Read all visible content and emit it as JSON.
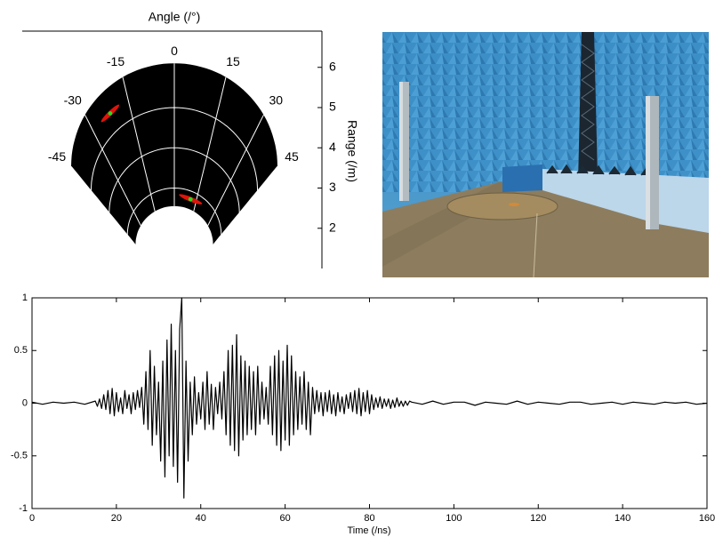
{
  "chart_data": [
    {
      "type": "polar",
      "title": "Angle (/°)",
      "ylabel": "Range (/m)",
      "xlim": [
        -45,
        45
      ],
      "xticks": [
        -45,
        -30,
        -15,
        0,
        15,
        30,
        45
      ],
      "ylim": [
        1,
        6.9
      ],
      "yticks": [
        2,
        3,
        4,
        5,
        6
      ],
      "rlim": [
        2.55,
        6.1
      ],
      "grid": true,
      "background": "#000000",
      "grid_color": "#ffffff",
      "targets": {
        "angle": [
          -22,
          11
        ],
        "range": [
          5.5,
          2.8
        ],
        "color": "#e0140a",
        "center_color": "#22dd22"
      }
    },
    {
      "type": "line",
      "xlabel": "Time (/ns)",
      "color": "#000000",
      "xlim": [
        0,
        160
      ],
      "xticks": [
        0,
        20,
        40,
        60,
        80,
        100,
        120,
        140,
        160
      ],
      "ylim": [
        -1,
        1
      ],
      "yticks": [
        -1,
        -0.5,
        0,
        0.5,
        1
      ],
      "x": [
        0,
        2.5,
        5,
        7.5,
        10,
        12.5,
        15,
        15.5,
        16,
        16.5,
        17,
        17.5,
        18,
        18.5,
        19,
        19.5,
        20,
        20.5,
        21,
        21.5,
        22,
        22.5,
        23,
        23.5,
        24,
        24.5,
        25,
        25.5,
        26,
        26.5,
        27,
        27.5,
        28,
        28.5,
        29,
        29.5,
        30,
        30.5,
        31,
        31.5,
        32,
        32.5,
        33,
        33.5,
        34,
        34.5,
        35,
        35.5,
        36,
        36.5,
        37,
        37.5,
        38,
        38.5,
        39,
        39.5,
        40,
        40.5,
        41,
        41.5,
        42,
        42.5,
        43,
        43.5,
        44,
        44.5,
        45,
        45.5,
        46,
        46.5,
        47,
        47.5,
        48,
        48.5,
        49,
        49.5,
        50,
        50.5,
        51,
        51.5,
        52,
        52.5,
        53,
        53.5,
        54,
        54.5,
        55,
        55.5,
        56,
        56.5,
        57,
        57.5,
        58,
        58.5,
        59,
        59.5,
        60,
        60.5,
        61,
        61.5,
        62,
        62.5,
        63,
        63.5,
        64,
        64.5,
        65,
        65.5,
        66,
        66.5,
        67,
        67.5,
        68,
        68.5,
        69,
        69.5,
        70,
        70.5,
        71,
        71.5,
        72,
        72.5,
        73,
        73.5,
        74,
        74.5,
        75,
        75.5,
        76,
        76.5,
        77,
        77.5,
        78,
        78.5,
        79,
        79.5,
        80,
        80.5,
        81,
        81.5,
        82,
        82.5,
        83,
        83.5,
        84,
        84.5,
        85,
        85.5,
        86,
        86.5,
        87,
        87.5,
        88,
        88.5,
        89,
        89.5,
        90,
        92.5,
        95,
        97.5,
        100,
        102.5,
        105,
        107.5,
        110,
        112.5,
        115,
        117.5,
        120,
        122.5,
        125,
        127.5,
        130,
        132.5,
        135,
        137.5,
        140,
        142.5,
        145,
        147.5,
        150,
        152.5,
        155,
        157.5,
        160
      ],
      "values": [
        0.01,
        -0.01,
        0.01,
        0,
        0.01,
        -0.01,
        0.02,
        -0.03,
        0.04,
        -0.05,
        0.08,
        -0.06,
        0.12,
        -0.1,
        0.14,
        -0.12,
        0.1,
        -0.08,
        0.05,
        -0.1,
        0.12,
        -0.05,
        0.08,
        -0.1,
        0.1,
        -0.06,
        0.12,
        -0.04,
        0.15,
        -0.2,
        0.3,
        -0.25,
        0.5,
        -0.4,
        0.35,
        -0.3,
        0.2,
        -0.55,
        0.4,
        -0.7,
        0.6,
        -0.5,
        0.75,
        -0.6,
        0.5,
        -0.75,
        0.7,
        1.0,
        -0.9,
        0.4,
        -0.55,
        0.2,
        -0.3,
        0.25,
        -0.2,
        0.1,
        -0.15,
        0.2,
        -0.25,
        0.3,
        -0.2,
        0.18,
        -0.25,
        0.15,
        -0.1,
        0.2,
        -0.15,
        0.3,
        -0.3,
        0.5,
        -0.4,
        0.55,
        -0.45,
        0.65,
        -0.5,
        0.45,
        -0.35,
        0.4,
        -0.3,
        0.35,
        -0.25,
        0.3,
        -0.3,
        0.35,
        -0.2,
        0.2,
        -0.15,
        0.15,
        -0.2,
        0.35,
        -0.3,
        0.45,
        -0.4,
        0.5,
        -0.45,
        0.4,
        -0.35,
        0.55,
        -0.4,
        0.45,
        -0.3,
        0.3,
        -0.25,
        0.25,
        -0.2,
        0.3,
        -0.25,
        0.2,
        -0.3,
        0.15,
        -0.1,
        0.12,
        -0.08,
        0.1,
        -0.12,
        0.1,
        -0.08,
        0.12,
        -0.1,
        0.08,
        -0.12,
        0.1,
        -0.08,
        0.06,
        -0.1,
        0.08,
        -0.05,
        0.1,
        -0.08,
        0.12,
        -0.1,
        0.14,
        -0.12,
        0.1,
        -0.08,
        0.12,
        -0.1,
        0.08,
        -0.06,
        0.05,
        -0.04,
        0.06,
        -0.05,
        0.04,
        -0.03,
        0.04,
        -0.05,
        0.03,
        -0.04,
        0.05,
        -0.03,
        0.02,
        -0.03,
        0.02,
        -0.02,
        0.02,
        0.01,
        -0.01,
        0.02,
        -0.01,
        0.01,
        0.01,
        -0.02,
        0.01,
        0,
        -0.01,
        0.02,
        -0.01,
        0.01,
        0,
        -0.01,
        0.01,
        0.01,
        -0.01,
        0,
        0.01,
        -0.01,
        0.01,
        0,
        -0.01,
        0.01,
        0,
        0.01,
        -0.01,
        0
      ]
    }
  ]
}
